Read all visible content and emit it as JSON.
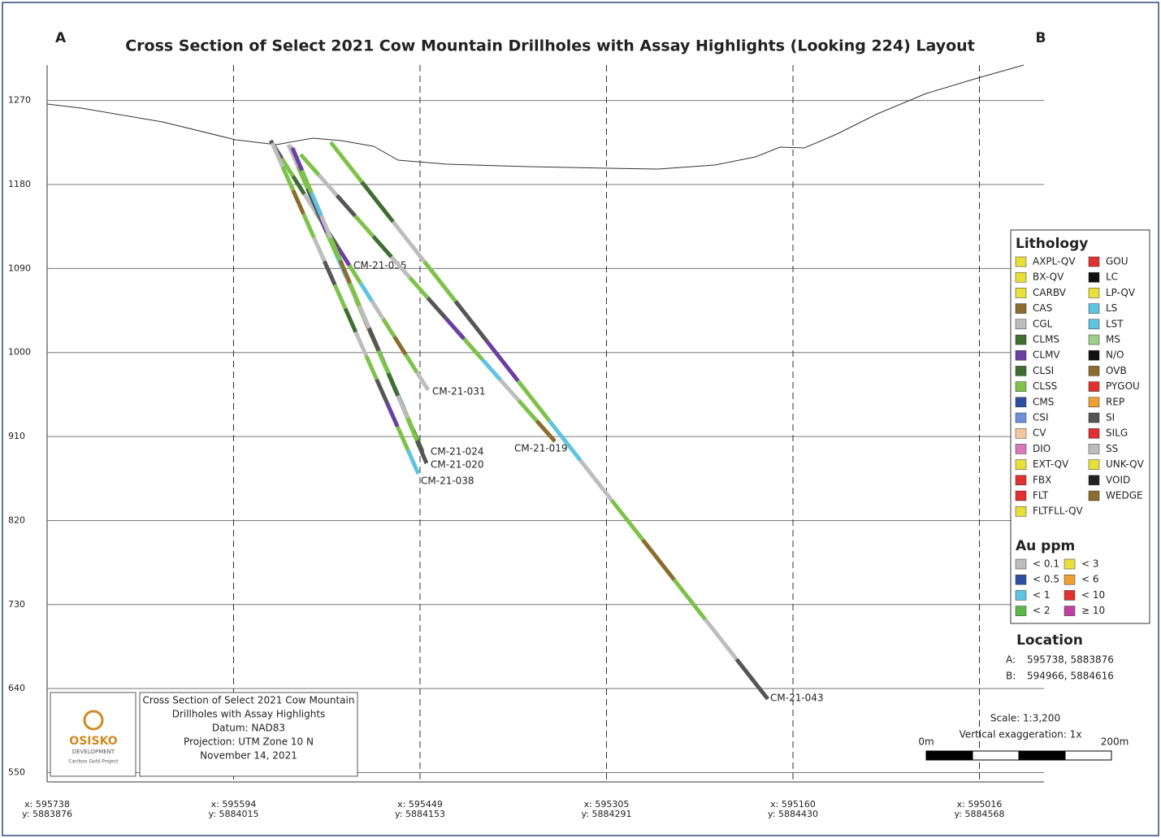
{
  "header": {
    "title": "Cross Section of Select 2021 Cow Mountain Drillholes with Assay Highlights (Looking 224) Layout",
    "left_label": "A",
    "right_label": "B"
  },
  "elevation_axis": {
    "ylim": [
      540,
      1308
    ],
    "yticks": [
      550,
      640,
      730,
      820,
      910,
      1000,
      1090,
      1180,
      1270
    ]
  },
  "stations": [
    {
      "x": "x: 595738",
      "y": "y: 5883876"
    },
    {
      "x": "x: 595594",
      "y": "y: 5884015"
    },
    {
      "x": "x: 595449",
      "y": "y: 5884153"
    },
    {
      "x": "x: 595305",
      "y": "y: 5884291"
    },
    {
      "x": "x: 595160",
      "y": "y: 5884430"
    },
    {
      "x": "x: 595016",
      "y": "y: 5884568"
    }
  ],
  "drillholes": [
    "CM-21-035",
    "CM-21-031",
    "CM-21-024",
    "CM-21-020",
    "CM-21-038",
    "CM-21-019",
    "CM-21-043"
  ],
  "lithology_legend": {
    "title": "Lithology",
    "items": [
      {
        "name": "AXPL-QV",
        "color": "#e8e03a"
      },
      {
        "name": "BX-QV",
        "color": "#e8e03a"
      },
      {
        "name": "CARBV",
        "color": "#e8e03a"
      },
      {
        "name": "CAS",
        "color": "#8b6b2e"
      },
      {
        "name": "CGL",
        "color": "#bdbdbd"
      },
      {
        "name": "CLMS",
        "color": "#3f6e32"
      },
      {
        "name": "CLMV",
        "color": "#6a3fa0"
      },
      {
        "name": "CLSI",
        "color": "#3f6e32"
      },
      {
        "name": "CLSS",
        "color": "#7dc24a"
      },
      {
        "name": "CMS",
        "color": "#2e4fa0"
      },
      {
        "name": "CSI",
        "color": "#6f8fd6"
      },
      {
        "name": "CV",
        "color": "#f4c9a0"
      },
      {
        "name": "DIO",
        "color": "#d67ab8"
      },
      {
        "name": "EXT-QV",
        "color": "#e8e03a"
      },
      {
        "name": "FBX",
        "color": "#e03030"
      },
      {
        "name": "FLT",
        "color": "#e03030"
      },
      {
        "name": "FLTFLL-QV",
        "color": "#e8e03a"
      },
      {
        "name": "GOU",
        "color": "#e03030"
      },
      {
        "name": "LC",
        "color": "#111111"
      },
      {
        "name": "LP-QV",
        "color": "#e8e03a"
      },
      {
        "name": "LS",
        "color": "#5ec4e0"
      },
      {
        "name": "LST",
        "color": "#5ec4e0"
      },
      {
        "name": "MS",
        "color": "#9ad08a"
      },
      {
        "name": "N/O",
        "color": "#111111"
      },
      {
        "name": "OVB",
        "color": "#8b6b2e"
      },
      {
        "name": "PYGOU",
        "color": "#e03030"
      },
      {
        "name": "REP",
        "color": "#f0a030"
      },
      {
        "name": "SI",
        "color": "#555555"
      },
      {
        "name": "SILG",
        "color": "#e03030"
      },
      {
        "name": "SS",
        "color": "#bdbdbd"
      },
      {
        "name": "UNK-QV",
        "color": "#e8e03a"
      },
      {
        "name": "VOID",
        "color": "#222222"
      },
      {
        "name": "WEDGE",
        "color": "#8b6b2e"
      }
    ]
  },
  "au_legend": {
    "title": "Au ppm",
    "items": [
      {
        "name": "< 0.1",
        "color": "#bdbdbd"
      },
      {
        "name": "< 0.5",
        "color": "#2e4fa0"
      },
      {
        "name": "< 1",
        "color": "#5ec4e0"
      },
      {
        "name": "< 2",
        "color": "#5cb846"
      },
      {
        "name": "< 3",
        "color": "#e8e03a"
      },
      {
        "name": "< 6",
        "color": "#f0a030"
      },
      {
        "name": "< 10",
        "color": "#e03030"
      },
      {
        "name": "≥ 10",
        "color": "#c040a0"
      }
    ]
  },
  "location": {
    "title": "Location",
    "rows": [
      {
        "label": "A:",
        "value": "595738, 5883876"
      },
      {
        "label": "B:",
        "value": "594966, 5884616"
      }
    ]
  },
  "info_box": {
    "lines": [
      "Cross Section of Select 2021 Cow Mountain",
      "Drillholes with Assay Highlights",
      "Datum: NAD83",
      "Projection: UTM Zone 10 N",
      "November 14, 2021"
    ],
    "logo": [
      "OSISKO",
      "DEVELOPMENT",
      "Cariboo Gold Project"
    ]
  },
  "scale": {
    "ratio": "Scale: 1:3,200",
    "exaggeration": "Vertical exaggeration: 1x",
    "start": "0m",
    "end": "200m"
  }
}
